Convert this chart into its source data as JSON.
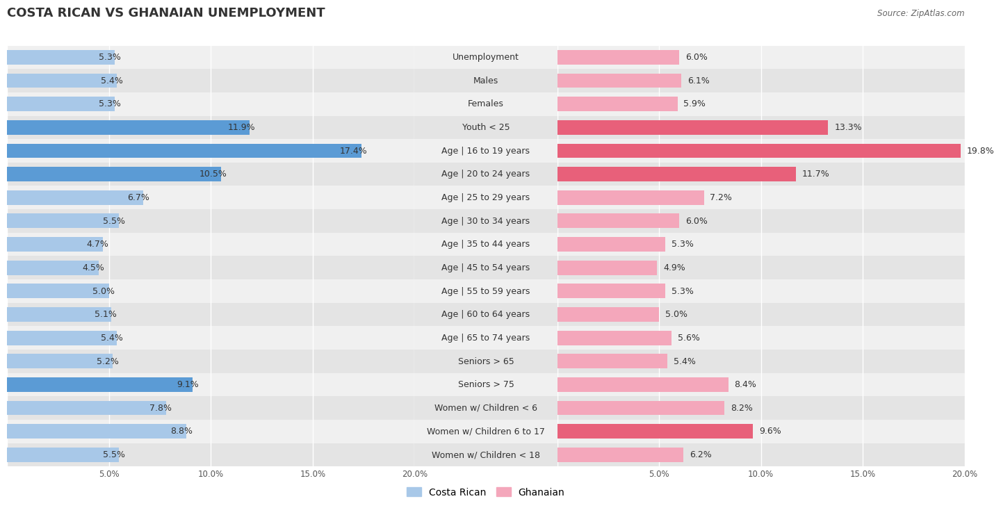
{
  "title": "COSTA RICAN VS GHANAIAN UNEMPLOYMENT",
  "source": "Source: ZipAtlas.com",
  "categories": [
    "Unemployment",
    "Males",
    "Females",
    "Youth < 25",
    "Age | 16 to 19 years",
    "Age | 20 to 24 years",
    "Age | 25 to 29 years",
    "Age | 30 to 34 years",
    "Age | 35 to 44 years",
    "Age | 45 to 54 years",
    "Age | 55 to 59 years",
    "Age | 60 to 64 years",
    "Age | 65 to 74 years",
    "Seniors > 65",
    "Seniors > 75",
    "Women w/ Children < 6",
    "Women w/ Children 6 to 17",
    "Women w/ Children < 18"
  ],
  "costa_rican": [
    5.3,
    5.4,
    5.3,
    11.9,
    17.4,
    10.5,
    6.7,
    5.5,
    4.7,
    4.5,
    5.0,
    5.1,
    5.4,
    5.2,
    9.1,
    7.8,
    8.8,
    5.5
  ],
  "ghanaian": [
    6.0,
    6.1,
    5.9,
    13.3,
    19.8,
    11.7,
    7.2,
    6.0,
    5.3,
    4.9,
    5.3,
    5.0,
    5.6,
    5.4,
    8.4,
    8.2,
    9.6,
    6.2
  ],
  "costa_rican_color_normal": "#a8c8e8",
  "costa_rican_color_high": "#5b9bd5",
  "ghanaian_color_normal": "#f4a7bb",
  "ghanaian_color_high": "#e8607a",
  "axis_max": 20.0,
  "row_bg_colors": [
    "#f0f0f0",
    "#e4e4e4"
  ],
  "label_fontsize": 9.0,
  "value_fontsize": 9.0,
  "title_fontsize": 13,
  "legend_fontsize": 10,
  "highlight_threshold": 9.0
}
